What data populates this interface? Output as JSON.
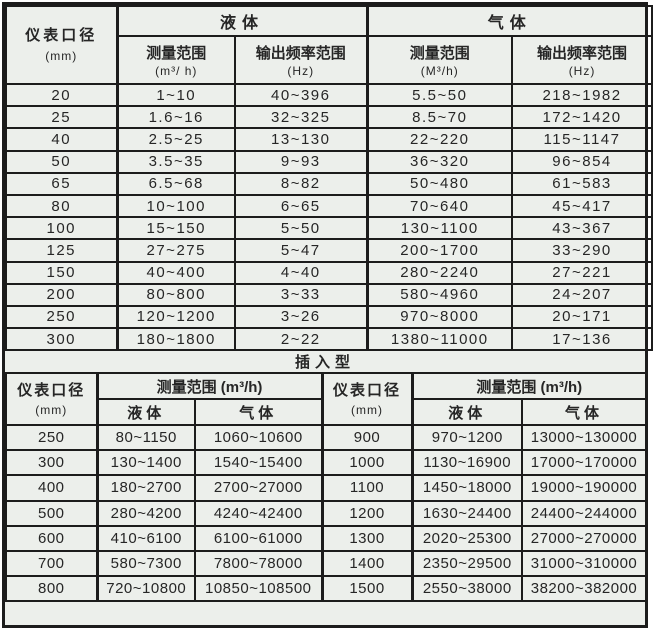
{
  "colors": {
    "background": "#ecefeb",
    "border": "#1c1c1c",
    "text": "#262626"
  },
  "table1": {
    "diameter_header": "仪表口径",
    "diameter_unit": "(mm)",
    "liquid_header": "液体",
    "gas_header": "气体",
    "measure_range_label": "测量范围",
    "liquid_measure_unit": "(m³/ h)",
    "gas_measure_unit": "(M³/h)",
    "freq_range_label": "输出频率范围",
    "freq_unit": "(Hz)",
    "rows": [
      {
        "dn": "20",
        "liquid_range": "1~10",
        "liquid_freq": "40~396",
        "gas_range": "5.5~50",
        "gas_freq": "218~1982"
      },
      {
        "dn": "25",
        "liquid_range": "1.6~16",
        "liquid_freq": "32~325",
        "gas_range": "8.5~70",
        "gas_freq": "172~1420"
      },
      {
        "dn": "40",
        "liquid_range": "2.5~25",
        "liquid_freq": "13~130",
        "gas_range": "22~220",
        "gas_freq": "115~1147"
      },
      {
        "dn": "50",
        "liquid_range": "3.5~35",
        "liquid_freq": "9~93",
        "gas_range": "36~320",
        "gas_freq": "96~854"
      },
      {
        "dn": "65",
        "liquid_range": "6.5~68",
        "liquid_freq": "8~82",
        "gas_range": "50~480",
        "gas_freq": "61~583"
      },
      {
        "dn": "80",
        "liquid_range": "10~100",
        "liquid_freq": "6~65",
        "gas_range": "70~640",
        "gas_freq": "45~417"
      },
      {
        "dn": "100",
        "liquid_range": "15~150",
        "liquid_freq": "5~50",
        "gas_range": "130~1100",
        "gas_freq": "43~367"
      },
      {
        "dn": "125",
        "liquid_range": "27~275",
        "liquid_freq": "5~47",
        "gas_range": "200~1700",
        "gas_freq": "33~290"
      },
      {
        "dn": "150",
        "liquid_range": "40~400",
        "liquid_freq": "4~40",
        "gas_range": "280~2240",
        "gas_freq": "27~221"
      },
      {
        "dn": "200",
        "liquid_range": "80~800",
        "liquid_freq": "3~33",
        "gas_range": "580~4960",
        "gas_freq": "24~207"
      },
      {
        "dn": "250",
        "liquid_range": "120~1200",
        "liquid_freq": "3~26",
        "gas_range": "970~8000",
        "gas_freq": "20~171"
      },
      {
        "dn": "300",
        "liquid_range": "180~1800",
        "liquid_freq": "2~22",
        "gas_range": "1380~11000",
        "gas_freq": "17~136"
      }
    ]
  },
  "insert_section": {
    "title": "插入型"
  },
  "table2": {
    "diameter_header": "仪表口径",
    "diameter_unit": "(mm)",
    "measure_header": "测量范围 (m³/h)",
    "liquid_label": "液体",
    "gas_label": "气体",
    "left_rows": [
      {
        "dn": "250",
        "liquid": "80~1150",
        "gas": "1060~10600"
      },
      {
        "dn": "300",
        "liquid": "130~1400",
        "gas": "1540~15400"
      },
      {
        "dn": "400",
        "liquid": "180~2700",
        "gas": "2700~27000"
      },
      {
        "dn": "500",
        "liquid": "280~4200",
        "gas": "4240~42400"
      },
      {
        "dn": "600",
        "liquid": "410~6100",
        "gas": "6100~61000"
      },
      {
        "dn": "700",
        "liquid": "580~7300",
        "gas": "7800~78000"
      },
      {
        "dn": "800",
        "liquid": "720~10800",
        "gas": "10850~108500"
      }
    ],
    "right_rows": [
      {
        "dn": "900",
        "liquid": "970~1200",
        "gas": "13000~130000"
      },
      {
        "dn": "1000",
        "liquid": "1130~16900",
        "gas": "17000~170000"
      },
      {
        "dn": "1100",
        "liquid": "1450~18000",
        "gas": "19000~190000"
      },
      {
        "dn": "1200",
        "liquid": "1630~24400",
        "gas": "24400~244000"
      },
      {
        "dn": "1300",
        "liquid": "2020~25300",
        "gas": "27000~270000"
      },
      {
        "dn": "1400",
        "liquid": "2350~29500",
        "gas": "31000~310000"
      },
      {
        "dn": "1500",
        "liquid": "2550~38000",
        "gas": "38200~382000"
      }
    ]
  }
}
